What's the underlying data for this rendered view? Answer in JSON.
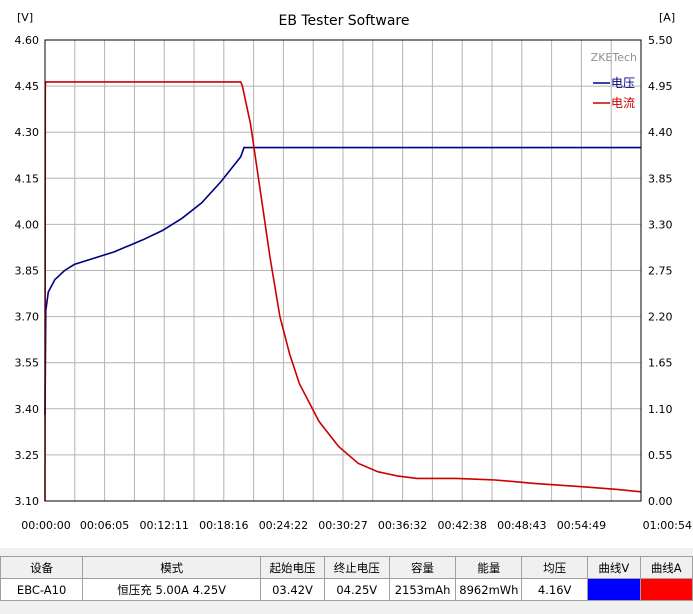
{
  "window": {
    "title": "EB Tester Software",
    "brand": "ZKETech"
  },
  "chart_data": {
    "type": "line",
    "title": "EB Tester Software",
    "left_axis": {
      "unit": "[V]",
      "range": [
        3.1,
        4.6
      ],
      "ticks": [
        "4.60",
        "4.45",
        "4.30",
        "4.15",
        "4.00",
        "3.85",
        "3.70",
        "3.55",
        "3.40",
        "3.25",
        "3.10"
      ]
    },
    "right_axis": {
      "unit": "[A]",
      "range": [
        0.0,
        5.5
      ],
      "ticks": [
        "5.50",
        "4.95",
        "4.40",
        "3.85",
        "3.30",
        "2.75",
        "2.20",
        "1.65",
        "1.10",
        "0.55",
        "0.00"
      ]
    },
    "x_axis": {
      "range_seconds": [
        0,
        3654
      ],
      "ticks": [
        "00:00:00",
        "00:06:05",
        "00:12:11",
        "00:18:16",
        "00:24:22",
        "00:30:27",
        "00:36:32",
        "00:42:38",
        "00:48:43",
        "00:54:49",
        "01:00:54"
      ]
    },
    "grid": true,
    "legend_position": "top-right",
    "series": [
      {
        "name": "电压",
        "axis": "left",
        "color": "#000080",
        "x": [
          0,
          5,
          20,
          60,
          120,
          180,
          300,
          420,
          600,
          720,
          840,
          960,
          1080,
          1140,
          1200,
          1220,
          1260,
          1350,
          2000,
          3000,
          3654
        ],
        "y": [
          3.38,
          3.72,
          3.78,
          3.82,
          3.85,
          3.87,
          3.89,
          3.91,
          3.95,
          3.98,
          4.02,
          4.07,
          4.14,
          4.18,
          4.22,
          4.25,
          4.25,
          4.25,
          4.25,
          4.25,
          4.25
        ]
      },
      {
        "name": "电流",
        "axis": "right",
        "color": "#cc0000",
        "x": [
          0,
          2,
          4,
          600,
          1200,
          1210,
          1260,
          1320,
          1380,
          1440,
          1500,
          1560,
          1680,
          1800,
          1920,
          2040,
          2160,
          2280,
          2400,
          2520,
          2640,
          2760,
          3000,
          3300,
          3500,
          3654
        ],
        "y": [
          0.0,
          4.95,
          5.0,
          5.0,
          5.0,
          4.95,
          4.5,
          3.7,
          2.9,
          2.2,
          1.75,
          1.4,
          0.95,
          0.65,
          0.45,
          0.35,
          0.3,
          0.27,
          0.27,
          0.27,
          0.26,
          0.25,
          0.21,
          0.17,
          0.14,
          0.11
        ]
      }
    ]
  },
  "info_table": {
    "headers": [
      "设备",
      "模式",
      "起始电压",
      "终止电压",
      "容量",
      "能量",
      "均压",
      "曲线V",
      "曲线A"
    ],
    "values": {
      "device": "EBC-A10",
      "mode": "恒压充  5.00A  4.25V",
      "start_voltage": "03.42V",
      "end_voltage": "04.25V",
      "capacity": "2153mAh",
      "energy": "8962mWh",
      "avg_voltage": "4.16V"
    },
    "curve_v_color": "#0000ff",
    "curve_a_color": "#ff0000"
  }
}
